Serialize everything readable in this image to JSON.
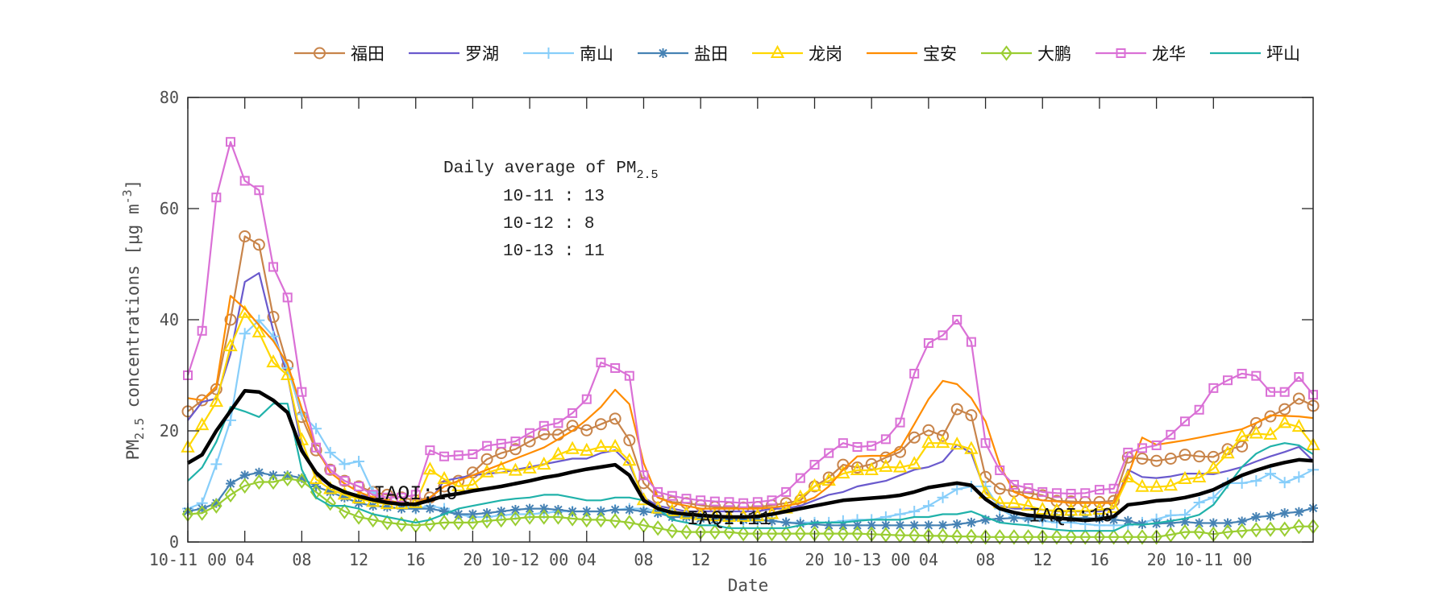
{
  "chart_data": {
    "type": "line",
    "xlabel": "Date",
    "ylabel": {
      "main": "PM",
      "sub": "2.5",
      "rest": " concentrations [μg m",
      "sup": "-3",
      "end": "]"
    },
    "ylim": [
      0,
      80
    ],
    "yticks": [
      "0",
      "20",
      "40",
      "60",
      "80"
    ],
    "xtick_step_points": 4,
    "xticks": [
      "10-11 00",
      "04",
      "08",
      "12",
      "16",
      "20",
      "10-12 00",
      "04",
      "08",
      "12",
      "16",
      "20",
      "10-13 00",
      "04",
      "08",
      "12",
      "16",
      "20",
      "10-11 00"
    ],
    "x": [
      "10-11 00",
      "10-11 01",
      "10-11 02",
      "10-11 03",
      "10-11 04",
      "10-11 05",
      "10-11 06",
      "10-11 07",
      "10-11 08",
      "10-11 09",
      "10-11 10",
      "10-11 11",
      "10-11 12",
      "10-11 13",
      "10-11 14",
      "10-11 15",
      "10-11 16",
      "10-11 17",
      "10-11 18",
      "10-11 19",
      "10-11 20",
      "10-11 21",
      "10-11 22",
      "10-11 23",
      "10-12 00",
      "10-12 01",
      "10-12 02",
      "10-12 03",
      "10-12 04",
      "10-12 05",
      "10-12 06",
      "10-12 07",
      "10-12 08",
      "10-12 09",
      "10-12 10",
      "10-12 11",
      "10-12 12",
      "10-12 13",
      "10-12 14",
      "10-12 15",
      "10-12 16",
      "10-12 17",
      "10-12 18",
      "10-12 19",
      "10-12 20",
      "10-12 21",
      "10-12 22",
      "10-12 23",
      "10-13 00",
      "10-13 01",
      "10-13 02",
      "10-13 03",
      "10-13 04",
      "10-13 05",
      "10-13 06",
      "10-13 07",
      "10-13 08",
      "10-13 09",
      "10-13 10",
      "10-13 11",
      "10-13 12",
      "10-13 13",
      "10-13 14",
      "10-13 15",
      "10-13 16",
      "10-13 17",
      "10-13 18",
      "10-13 19",
      "10-13 20",
      "10-13 21",
      "10-13 22",
      "10-13 23",
      "10-14 00",
      "10-14 01",
      "10-14 02",
      "10-14 03",
      "10-14 04",
      "10-14 05",
      "10-14 06",
      "10-14 07"
    ],
    "grid": false,
    "legend_position": "top",
    "series": [
      {
        "name": "福田",
        "color": "#C8844A",
        "marker": "circle",
        "values": [
          23.5,
          25.5,
          27.5,
          40,
          55,
          53.5,
          40.5,
          31.8,
          22.5,
          16.5,
          13,
          11,
          10,
          9,
          8.5,
          8,
          7.5,
          8,
          10,
          11,
          12.5,
          14.9,
          16,
          16.7,
          18.1,
          19.4,
          19.3,
          20.9,
          20.1,
          21.2,
          22.2,
          18.3,
          10.6,
          8,
          7.2,
          7,
          6.6,
          6.3,
          6.2,
          6.2,
          6.3,
          6.6,
          7,
          7.5,
          10,
          11.6,
          13.9,
          13.4,
          14,
          15.2,
          16.2,
          18.8,
          20.1,
          19.1,
          23.9,
          22.8,
          11.7,
          9.6,
          9.1,
          8.8,
          8.4,
          7.4,
          7.3,
          7.2,
          7.2,
          7.4,
          15.2,
          15,
          14.6,
          15,
          15.7,
          15.4,
          15.3,
          16.7,
          17.2,
          21.4,
          22.6,
          23.9,
          25.8,
          24.5
        ]
      },
      {
        "name": "罗湖",
        "color": "#6A5ACD",
        "marker": "none",
        "values": [
          21.9,
          25.2,
          25.8,
          33.8,
          46.8,
          48.4,
          38,
          30,
          17,
          12,
          10,
          9,
          8.5,
          8,
          7.5,
          7,
          7,
          7.5,
          11,
          11.5,
          12,
          12.3,
          12.5,
          13,
          13.5,
          14,
          14.5,
          15,
          15,
          16,
          16.5,
          14,
          8,
          6.5,
          6,
          5.5,
          5.5,
          5.5,
          5.5,
          5.5,
          5.5,
          6,
          6,
          6.5,
          7.5,
          8.5,
          9,
          10,
          10.5,
          11,
          12,
          13,
          13.5,
          14.5,
          17.5,
          16,
          9,
          6.5,
          6,
          6,
          5.8,
          5.5,
          5.5,
          5.5,
          5.5,
          6,
          13,
          11.7,
          11.5,
          11.8,
          12.3,
          12.3,
          12.2,
          12.8,
          13.5,
          14.5,
          15.4,
          16.2,
          17.1,
          14.6
        ]
      },
      {
        "name": "南山",
        "color": "#87CEFA",
        "marker": "plus",
        "values": [
          6,
          7,
          14,
          21.9,
          37.5,
          39.9,
          37,
          31.3,
          23,
          20.4,
          16.1,
          14,
          14.5,
          9,
          7,
          6.5,
          6,
          6.5,
          6,
          5,
          4.5,
          4.5,
          4.8,
          5,
          5,
          5.2,
          5.5,
          5.5,
          5.5,
          5.5,
          5.8,
          6,
          6,
          5.5,
          5,
          4.5,
          4.2,
          4,
          4,
          3.8,
          3.8,
          3.8,
          3.5,
          3.5,
          3.5,
          3.5,
          3.8,
          4,
          4,
          4.5,
          5,
          5.5,
          6.5,
          8,
          9.5,
          10,
          10,
          6,
          4.5,
          4,
          3.8,
          3.5,
          3.5,
          3.2,
          3,
          3,
          3,
          3.5,
          4.1,
          4.8,
          4.9,
          7.1,
          8,
          10.6,
          10.6,
          11,
          12.3,
          10.7,
          11.7,
          13
        ]
      },
      {
        "name": "盐田",
        "color": "#4682B4",
        "marker": "asterisk",
        "values": [
          5.5,
          6,
          7,
          10.5,
          12,
          12.5,
          12,
          12,
          11.5,
          10,
          9,
          8,
          7,
          6.5,
          6.3,
          6,
          6,
          6,
          5.5,
          5,
          5,
          5.2,
          5.5,
          5.8,
          6,
          6,
          5.8,
          5.5,
          5.5,
          5.5,
          5.8,
          5.8,
          5.5,
          5.2,
          4.5,
          4.5,
          4.2,
          4,
          4,
          4,
          4,
          3.8,
          3.5,
          3.3,
          3.2,
          3,
          3,
          3,
          3,
          3,
          3,
          3,
          3,
          3,
          3.2,
          3.5,
          4,
          4.2,
          4.3,
          4.3,
          4.3,
          4.3,
          4.3,
          4.3,
          4.2,
          4,
          3.8,
          3.2,
          3.3,
          3.4,
          3.6,
          3.4,
          3.4,
          3.4,
          3.7,
          4.5,
          4.7,
          5.2,
          5.4,
          6.1
        ]
      },
      {
        "name": "龙岗",
        "color": "#FFD700",
        "marker": "triangle",
        "values": [
          17,
          21,
          25.2,
          35.2,
          41.2,
          37.7,
          32.3,
          30,
          18.3,
          11.3,
          9.5,
          8.5,
          7.8,
          7.2,
          6.8,
          6.8,
          7,
          13,
          11.3,
          10,
          10.3,
          12.5,
          13.2,
          12.8,
          13.2,
          13.9,
          15.7,
          16.7,
          16.4,
          17.1,
          17.1,
          14.6,
          7.5,
          6,
          5.5,
          5,
          4.8,
          4.6,
          4.5,
          4.5,
          4.6,
          5,
          6,
          8,
          10,
          11,
          12.3,
          12.9,
          12.9,
          13.5,
          13.4,
          14,
          17.8,
          17.8,
          17.5,
          16.7,
          8.7,
          7,
          7,
          6.5,
          5.8,
          5.6,
          5.6,
          5.6,
          5.8,
          6.1,
          11.6,
          9.9,
          9.9,
          10.1,
          11.3,
          11.6,
          13.2,
          15.9,
          19,
          19.5,
          19.3,
          21.4,
          20.7,
          17.4
        ]
      },
      {
        "name": "宝安",
        "color": "#FF8C00",
        "marker": "none",
        "values": [
          25.9,
          25.5,
          28,
          44.3,
          42,
          39,
          36.2,
          32,
          24,
          17,
          12.5,
          10.5,
          9,
          8,
          7.5,
          7,
          7,
          8,
          10,
          11,
          12,
          13,
          14,
          15,
          16,
          17,
          18.5,
          20,
          22,
          24.3,
          27.4,
          24.8,
          14.2,
          8,
          7,
          6.5,
          6,
          6,
          6,
          6,
          6,
          6.2,
          6.5,
          7,
          8,
          10,
          13,
          15.4,
          15.5,
          15.5,
          16.8,
          21.2,
          25.7,
          29,
          28.4,
          25.9,
          21.7,
          13.9,
          9,
          8,
          7.5,
          7.3,
          7,
          7,
          7,
          7,
          12,
          18.8,
          17.5,
          17.9,
          18.3,
          18.8,
          19.3,
          19.8,
          20.3,
          21.4,
          22.8,
          22.7,
          22.6,
          22.3
        ]
      },
      {
        "name": "大鹏",
        "color": "#9ACD32",
        "marker": "diamond",
        "values": [
          5,
          5.2,
          6.5,
          8.5,
          10.1,
          10.8,
          10.8,
          11.4,
          11,
          9,
          7,
          5.5,
          4.5,
          4,
          3.5,
          3.2,
          3,
          3.2,
          3.5,
          3.5,
          3.5,
          3.8,
          4,
          4.2,
          4.5,
          4.5,
          4.5,
          4.2,
          4,
          4,
          3.8,
          3.5,
          3,
          2.5,
          2,
          1.8,
          1.8,
          1.8,
          1.8,
          1.5,
          1.5,
          1.5,
          1.5,
          1.5,
          1.5,
          1.5,
          1.5,
          1.5,
          1.4,
          1.3,
          1.2,
          1.2,
          1.1,
          1.1,
          1,
          1,
          0.9,
          0.9,
          0.9,
          0.9,
          0.9,
          0.9,
          0.9,
          0.9,
          0.9,
          0.9,
          0.9,
          0.9,
          0.9,
          1.3,
          1.8,
          1.8,
          1.4,
          1.8,
          2,
          2.2,
          2.3,
          2.3,
          2.8,
          2.8
        ]
      },
      {
        "name": "龙华",
        "color": "#DA70D6",
        "marker": "square",
        "values": [
          30,
          38,
          62,
          72,
          65,
          63.3,
          49.5,
          44,
          27,
          17,
          13,
          11,
          10,
          8.5,
          8,
          8,
          8.5,
          16.5,
          15.4,
          15.6,
          15.8,
          17.3,
          17.7,
          18.1,
          19.6,
          20.9,
          21.4,
          23.2,
          25.7,
          32.3,
          31.3,
          29.9,
          12,
          9,
          8.3,
          7.8,
          7.5,
          7.3,
          7.2,
          7,
          7.2,
          7.5,
          9,
          11.5,
          13.9,
          16,
          17.8,
          17.1,
          17.3,
          18.5,
          21.5,
          30.3,
          35.8,
          37.2,
          40,
          36,
          17.8,
          12.9,
          10.3,
          9.7,
          9,
          8.8,
          8.7,
          8.8,
          9.4,
          9.6,
          16.1,
          16.9,
          17.4,
          19.3,
          21.7,
          23.8,
          27.7,
          29.1,
          30.3,
          29.9,
          27,
          27,
          29.7,
          26.5
        ]
      },
      {
        "name": "坪山",
        "color": "#20B2AA",
        "marker": "none",
        "values": [
          11,
          13.4,
          18,
          24.3,
          23.5,
          22.5,
          24.9,
          24.9,
          13,
          8,
          6.5,
          6.5,
          6,
          5,
          4.5,
          4,
          3.5,
          4,
          5,
          6,
          6.5,
          7,
          7.5,
          7.8,
          8,
          8.5,
          8.5,
          8,
          7.5,
          7.5,
          8,
          8,
          7.5,
          6,
          4,
          3.5,
          3,
          3,
          2.5,
          2.5,
          2.5,
          2.5,
          2.5,
          3,
          3.5,
          3.5,
          3.5,
          3.8,
          4,
          4,
          4,
          4.5,
          4.5,
          5,
          5,
          5.5,
          4.5,
          3.5,
          3.2,
          3,
          2.5,
          2.2,
          2,
          2,
          2,
          2,
          3.2,
          3.1,
          3.4,
          3.8,
          4.2,
          4.9,
          6.7,
          10.1,
          13.5,
          15.9,
          17.2,
          17.8,
          17.4,
          15.8
        ]
      }
    ],
    "mean_series": {
      "color": "#000000",
      "values": [
        14.2,
        15.7,
        20,
        23.6,
        27.2,
        27,
        25.5,
        23.3,
        16.4,
        12.5,
        10.2,
        9,
        8.2,
        7.6,
        7.1,
        6.8,
        6.8,
        7.5,
        8.3,
        8.7,
        9.2,
        9.6,
        10,
        10.5,
        11,
        11.6,
        12,
        12.6,
        13.1,
        13.5,
        13.9,
        12,
        7.5,
        6,
        5.3,
        5,
        4.8,
        4.6,
        4.5,
        4.5,
        4.6,
        5,
        5.5,
        6,
        6.5,
        7,
        7.5,
        7.7,
        7.9,
        8.1,
        8.4,
        9,
        9.8,
        10.2,
        10.6,
        10.2,
        7.7,
        6,
        5.3,
        4.8,
        4.6,
        4.3,
        4.1,
        3.9,
        4.1,
        4.6,
        6.7,
        7,
        7.4,
        7.6,
        8,
        8.6,
        9.4,
        10.7,
        12,
        12.9,
        13.7,
        14.3,
        14.8,
        14.6
      ]
    },
    "annotation": {
      "title": "Daily average of PM",
      "title_sub": "2.5",
      "lines": [
        "10-11 : 13",
        "10-12 : 8",
        "10-13 : 11"
      ]
    },
    "iaqi_labels": [
      {
        "text": "IAQI:19",
        "at": "10-11 16",
        "value": 9
      },
      {
        "text": "IAQI:11",
        "at": "10-12 14",
        "value": 4.5
      },
      {
        "text": "IAQI:10",
        "at": "10-13 14",
        "value": 5
      }
    ]
  }
}
